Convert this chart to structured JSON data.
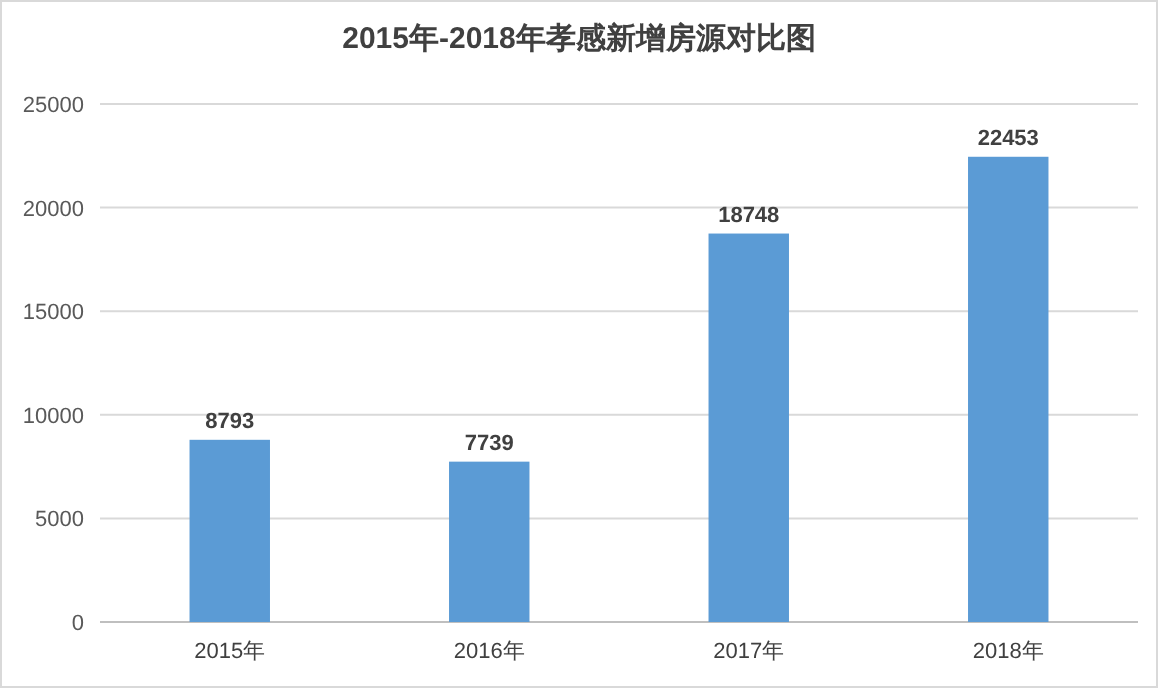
{
  "chart_data": {
    "type": "bar",
    "title": "2015年-2018年孝感新增房源对比图",
    "categories": [
      "2015年",
      "2016年",
      "2017年",
      "2018年"
    ],
    "values": [
      8793,
      7739,
      18748,
      22453
    ],
    "color": "#5b9bd5",
    "data_labels": true,
    "ylim": [
      0,
      25000
    ],
    "yticks": [
      0,
      5000,
      10000,
      15000,
      20000,
      25000
    ],
    "grid": "y"
  }
}
